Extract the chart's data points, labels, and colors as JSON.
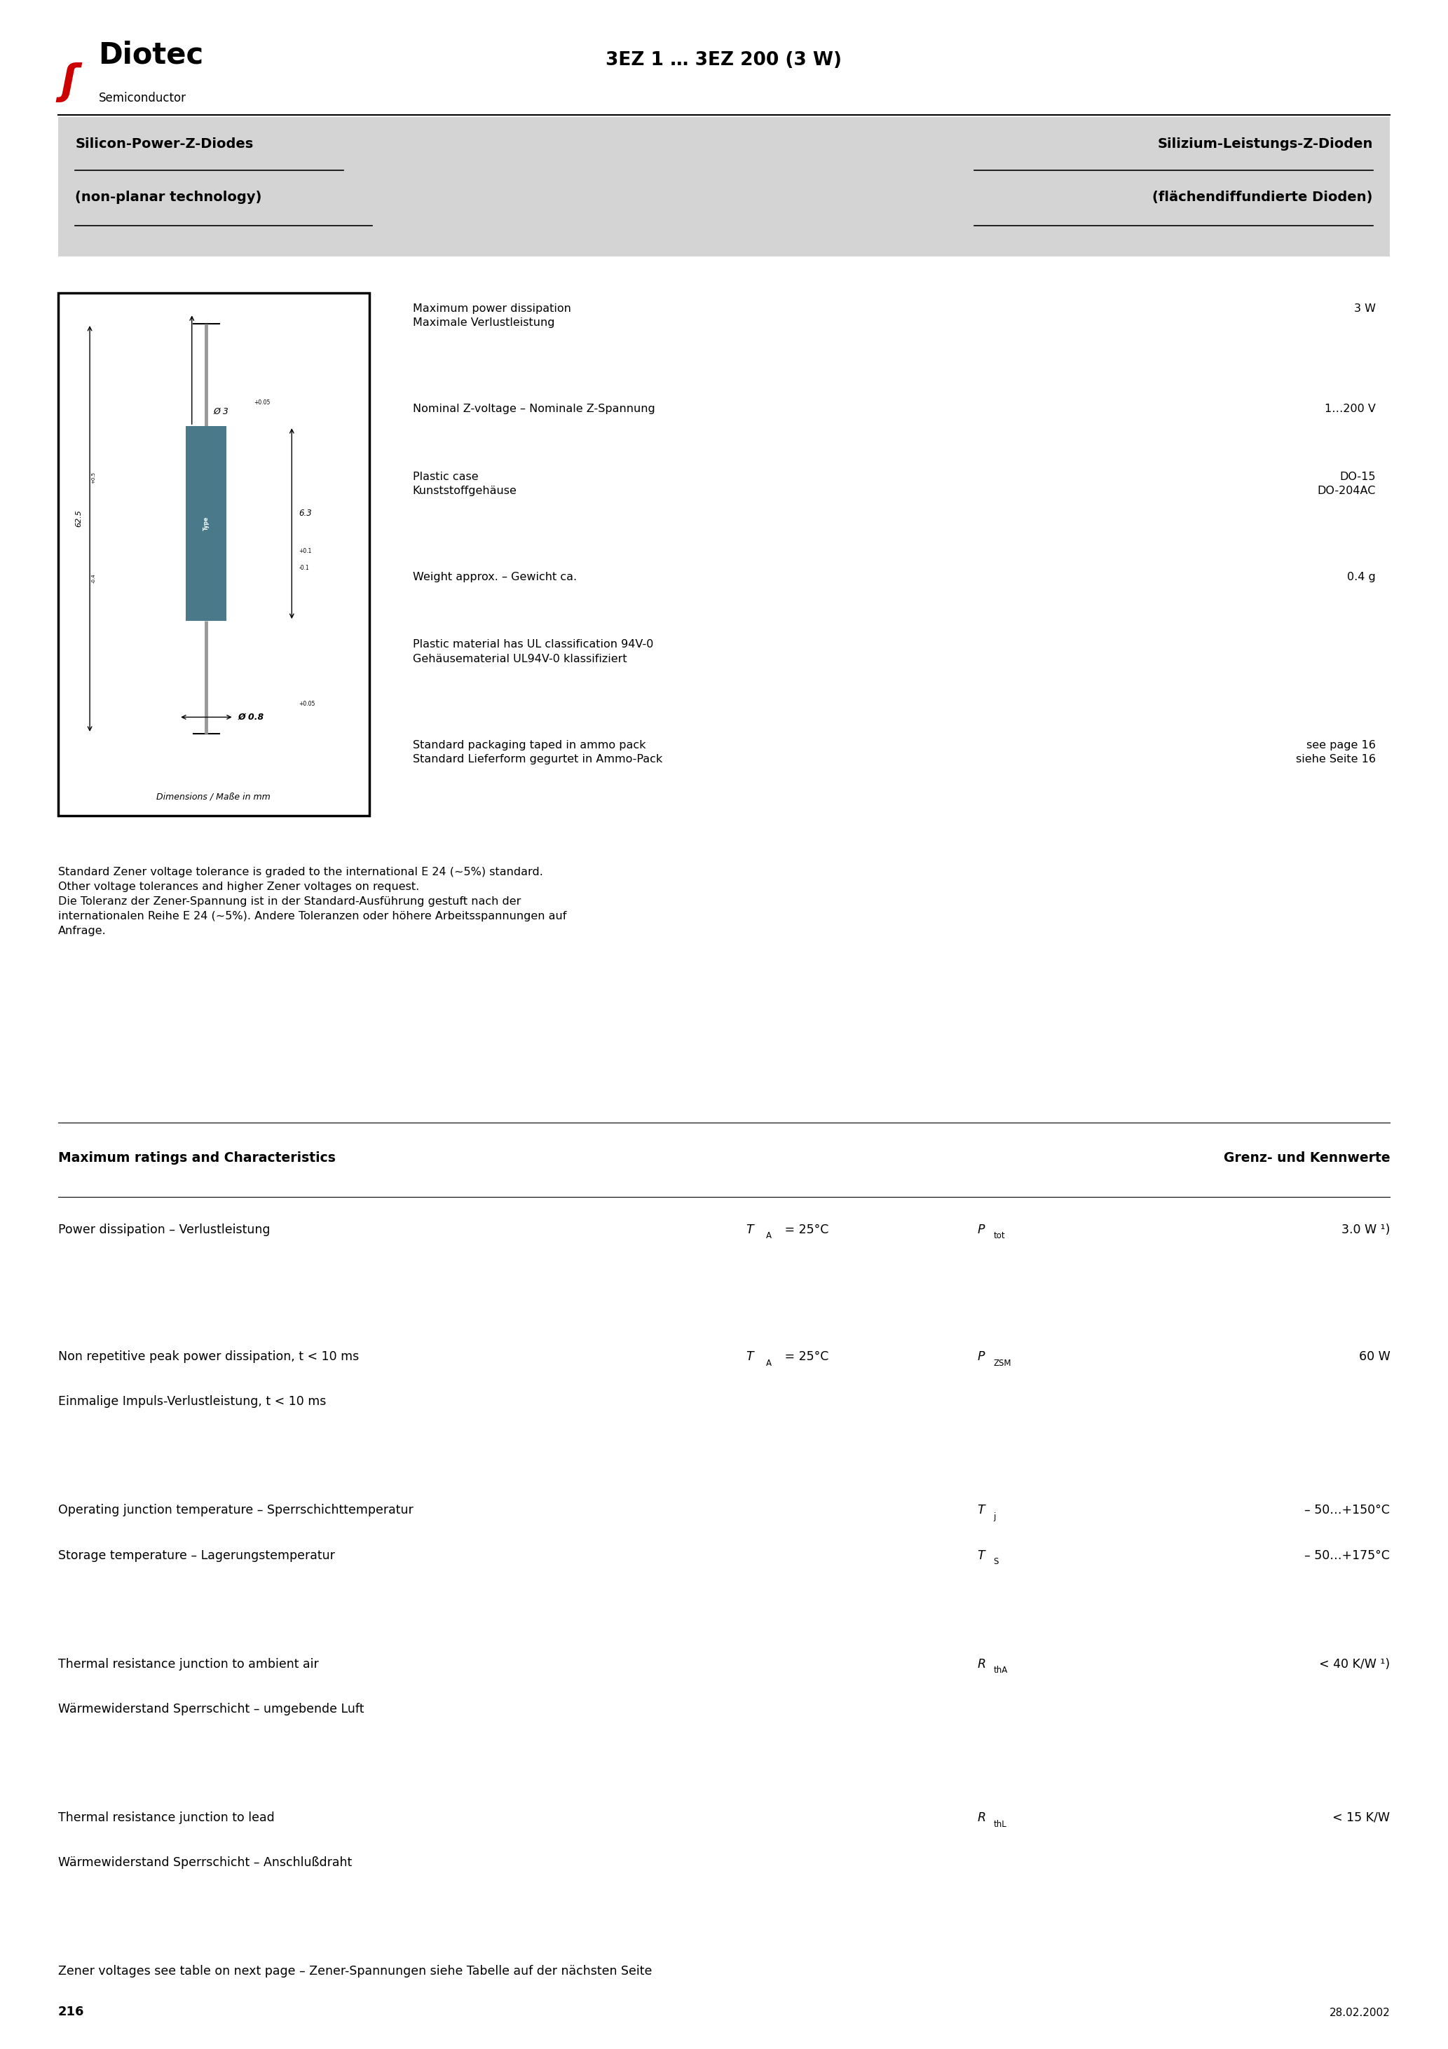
{
  "page_width": 20.66,
  "page_height": 29.24,
  "bg_color": "#ffffff",
  "header_title": "3EZ 1 … 3EZ 200 (3 W)",
  "company": "Diotec",
  "subtitle": "Semiconductor",
  "left_heading1": "Silicon-Power-Z-Diodes",
  "left_heading2": "(non-planar technology)",
  "right_heading1": "Silizium-Leistungs-Z-Dioden",
  "right_heading2": "(flächendiffundierte Dioden)",
  "header_bg": "#d4d4d4",
  "specs": [
    {
      "label": "Maximum power dissipation\nMaximale Verlustleistung",
      "value": "3 W"
    },
    {
      "label": "Nominal Z-voltage – Nominale Z-Spannung",
      "value": "1…200 V"
    },
    {
      "label": "Plastic case\nKunststoffgehäuse",
      "value": "DO-15\nDO-204AC"
    },
    {
      "label": "Weight approx. – Gewicht ca.",
      "value": "0.4 g"
    },
    {
      "label": "Plastic material has UL classification 94V-0\nGehäusematerial UL94V-0 klassifiziert",
      "value": ""
    },
    {
      "label": "Standard packaging taped in ammo pack\nStandard Lieferform gegurtet in Ammo-Pack",
      "value": "see page 16\nsiehe Seite 16"
    }
  ],
  "tolerance_text": "Standard Zener voltage tolerance is graded to the international E 24 (~5%) standard.\nOther voltage tolerances and higher Zener voltages on request.\nDie Toleranz der Zener-Spannung ist in der Standard-Ausführung gestuft nach der\ninternationalen Reihe E 24 (~5%). Andere Toleranzen oder höhere Arbeitsspannungen auf\nAnfrage.",
  "max_ratings_title": "Maximum ratings and Characteristics",
  "max_ratings_right": "Grenz- und Kennwerte",
  "zener_note": "Zener voltages see table on next page – Zener-Spannungen siehe Tabelle auf der nächsten Seite",
  "page_number": "216",
  "date": "28.02.2002"
}
